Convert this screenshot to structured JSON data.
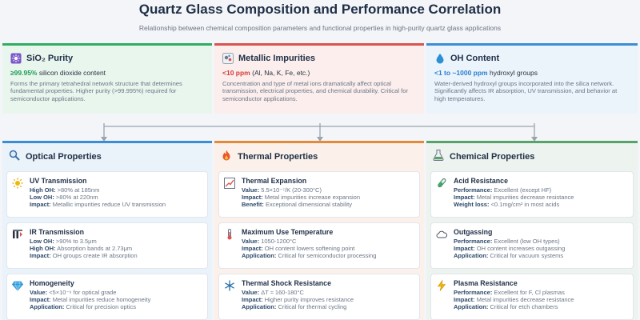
{
  "header": {
    "title": "Quartz Glass Composition and Performance Correlation",
    "subtitle": "Relationship between chemical composition parameters and functional properties in high-purity quartz glass applications"
  },
  "composition": [
    {
      "name": "SiO₂ Purity",
      "value": "≥99.95%",
      "value_suffix": "silicon dioxide content",
      "description": "Forms the primary tetrahedral network structure that determines fundamental properties. Higher purity (>99.995%) required for semiconductor applications.",
      "icon": "purity-icon",
      "accent": "#2fae62"
    },
    {
      "name": "Metallic Impurities",
      "value": "<10 ppm",
      "value_suffix": "(Al, Na, K, Fe, etc.)",
      "description": "Concentration and type of metal ions dramatically affect optical transmission, electrical properties, and chemical durability. Critical for semiconductor applications.",
      "icon": "impurity-icon",
      "accent": "#d9534f"
    },
    {
      "name": "OH Content",
      "value": "<1 to ~1000 ppm",
      "value_suffix": "hydroxyl groups",
      "description": "Water-derived hydroxyl groups incorporated into the silica network. Significantly affects IR absorption, UV transmission, and behavior at high temperatures.",
      "icon": "water-drop-icon",
      "accent": "#3b8ed6"
    }
  ],
  "categories": [
    {
      "name": "Optical Properties",
      "icon": "magnifier-icon",
      "accent": "#3b8ed6",
      "items": [
        {
          "name": "UV Transmission",
          "icon": "sun-icon",
          "lines": [
            {
              "label": "High OH:",
              "text": ">80% at 185nm"
            },
            {
              "label": "Low OH:",
              "text": ">80% at 220nm"
            },
            {
              "label": "Impact:",
              "text": "Metallic impurities reduce UV transmission"
            }
          ]
        },
        {
          "name": "IR Transmission",
          "icon": "ir-beam-icon",
          "lines": [
            {
              "label": "Low OH:",
              "text": ">90% to 3.5μm"
            },
            {
              "label": "High OH:",
              "text": "Absorption bands at 2.73μm"
            },
            {
              "label": "Impact:",
              "text": "OH groups create IR absorption"
            }
          ]
        },
        {
          "name": "Homogeneity",
          "icon": "diamond-icon",
          "lines": [
            {
              "label": "Value:",
              "text": "<5×10⁻⁶ for optical grade"
            },
            {
              "label": "Impact:",
              "text": "Metal impurities reduce homogeneity"
            },
            {
              "label": "Application:",
              "text": "Critical for precision optics"
            }
          ]
        }
      ]
    },
    {
      "name": "Thermal Properties",
      "icon": "flame-icon",
      "accent": "#e5893a",
      "items": [
        {
          "name": "Thermal Expansion",
          "icon": "expansion-chart-icon",
          "lines": [
            {
              "label": "Value:",
              "text": "5.5×10⁻⁷/K (20-300°C)"
            },
            {
              "label": "Impact:",
              "text": "Metal impurities increase expansion"
            },
            {
              "label": "Benefit:",
              "text": "Exceptional dimensional stability"
            }
          ]
        },
        {
          "name": "Maximum Use Temperature",
          "icon": "thermometer-icon",
          "lines": [
            {
              "label": "Value:",
              "text": "1050-1200°C"
            },
            {
              "label": "Impact:",
              "text": "OH content lowers softening point"
            },
            {
              "label": "Application:",
              "text": "Critical for semiconductor processing"
            }
          ]
        },
        {
          "name": "Thermal Shock Resistance",
          "icon": "snowflake-icon",
          "lines": [
            {
              "label": "Value:",
              "text": "ΔT ≈ 160-180°C"
            },
            {
              "label": "Impact:",
              "text": "Higher purity improves resistance"
            },
            {
              "label": "Application:",
              "text": "Critical for thermal cycling"
            }
          ]
        }
      ]
    },
    {
      "name": "Chemical Properties",
      "icon": "flask-icon",
      "accent": "#58a36b",
      "items": [
        {
          "name": "Acid Resistance",
          "icon": "test-tube-icon",
          "lines": [
            {
              "label": "Performance:",
              "text": "Excellent (except HF)"
            },
            {
              "label": "Impact:",
              "text": "Metal impurities decrease resistance"
            },
            {
              "label": "Weight loss:",
              "text": "<0.1mg/cm² in most acids"
            }
          ]
        },
        {
          "name": "Outgassing",
          "icon": "cloud-icon",
          "lines": [
            {
              "label": "Performance:",
              "text": "Excellent (low OH types)"
            },
            {
              "label": "Impact:",
              "text": "OH content increases outgassing"
            },
            {
              "label": "Application:",
              "text": "Critical for vacuum systems"
            }
          ]
        },
        {
          "name": "Plasma Resistance",
          "icon": "lightning-icon",
          "lines": [
            {
              "label": "Performance:",
              "text": "Excellent for F, Cl plasmas"
            },
            {
              "label": "Impact:",
              "text": "Metal impurities decrease resistance"
            },
            {
              "label": "Application:",
              "text": "Critical for etch chambers"
            }
          ]
        }
      ]
    }
  ]
}
